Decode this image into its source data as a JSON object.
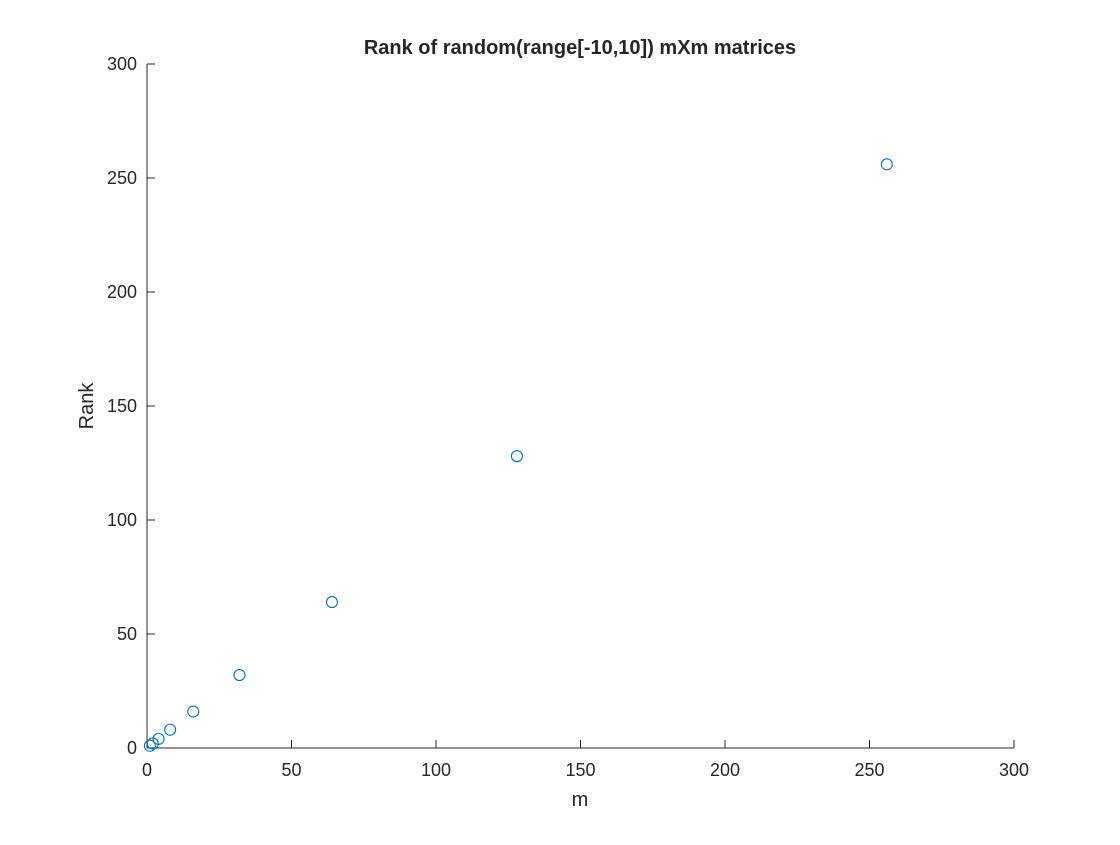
{
  "chart_data": {
    "type": "scatter",
    "title": "Rank of random(range[-10,10]) mXm matrices",
    "xlabel": "m",
    "ylabel": "Rank",
    "xlim": [
      0,
      300
    ],
    "ylim": [
      0,
      300
    ],
    "xticks": [
      0,
      50,
      100,
      150,
      200,
      250,
      300
    ],
    "yticks": [
      0,
      50,
      100,
      150,
      200,
      250,
      300
    ],
    "xtick_labels": [
      "0",
      "50",
      "100",
      "150",
      "200",
      "250",
      "300"
    ],
    "ytick_labels": [
      "0",
      "50",
      "100",
      "150",
      "200",
      "250",
      "300"
    ],
    "grid": false,
    "marker": "open-circle",
    "color": "#0072BD",
    "axis_color": "#262626",
    "series": [
      {
        "points": [
          {
            "x": 1,
            "y": 1
          },
          {
            "x": 2,
            "y": 2
          },
          {
            "x": 4,
            "y": 4
          },
          {
            "x": 8,
            "y": 8
          },
          {
            "x": 16,
            "y": 16
          },
          {
            "x": 32,
            "y": 32
          },
          {
            "x": 64,
            "y": 64
          },
          {
            "x": 128,
            "y": 128
          },
          {
            "x": 256,
            "y": 256
          }
        ]
      }
    ]
  }
}
